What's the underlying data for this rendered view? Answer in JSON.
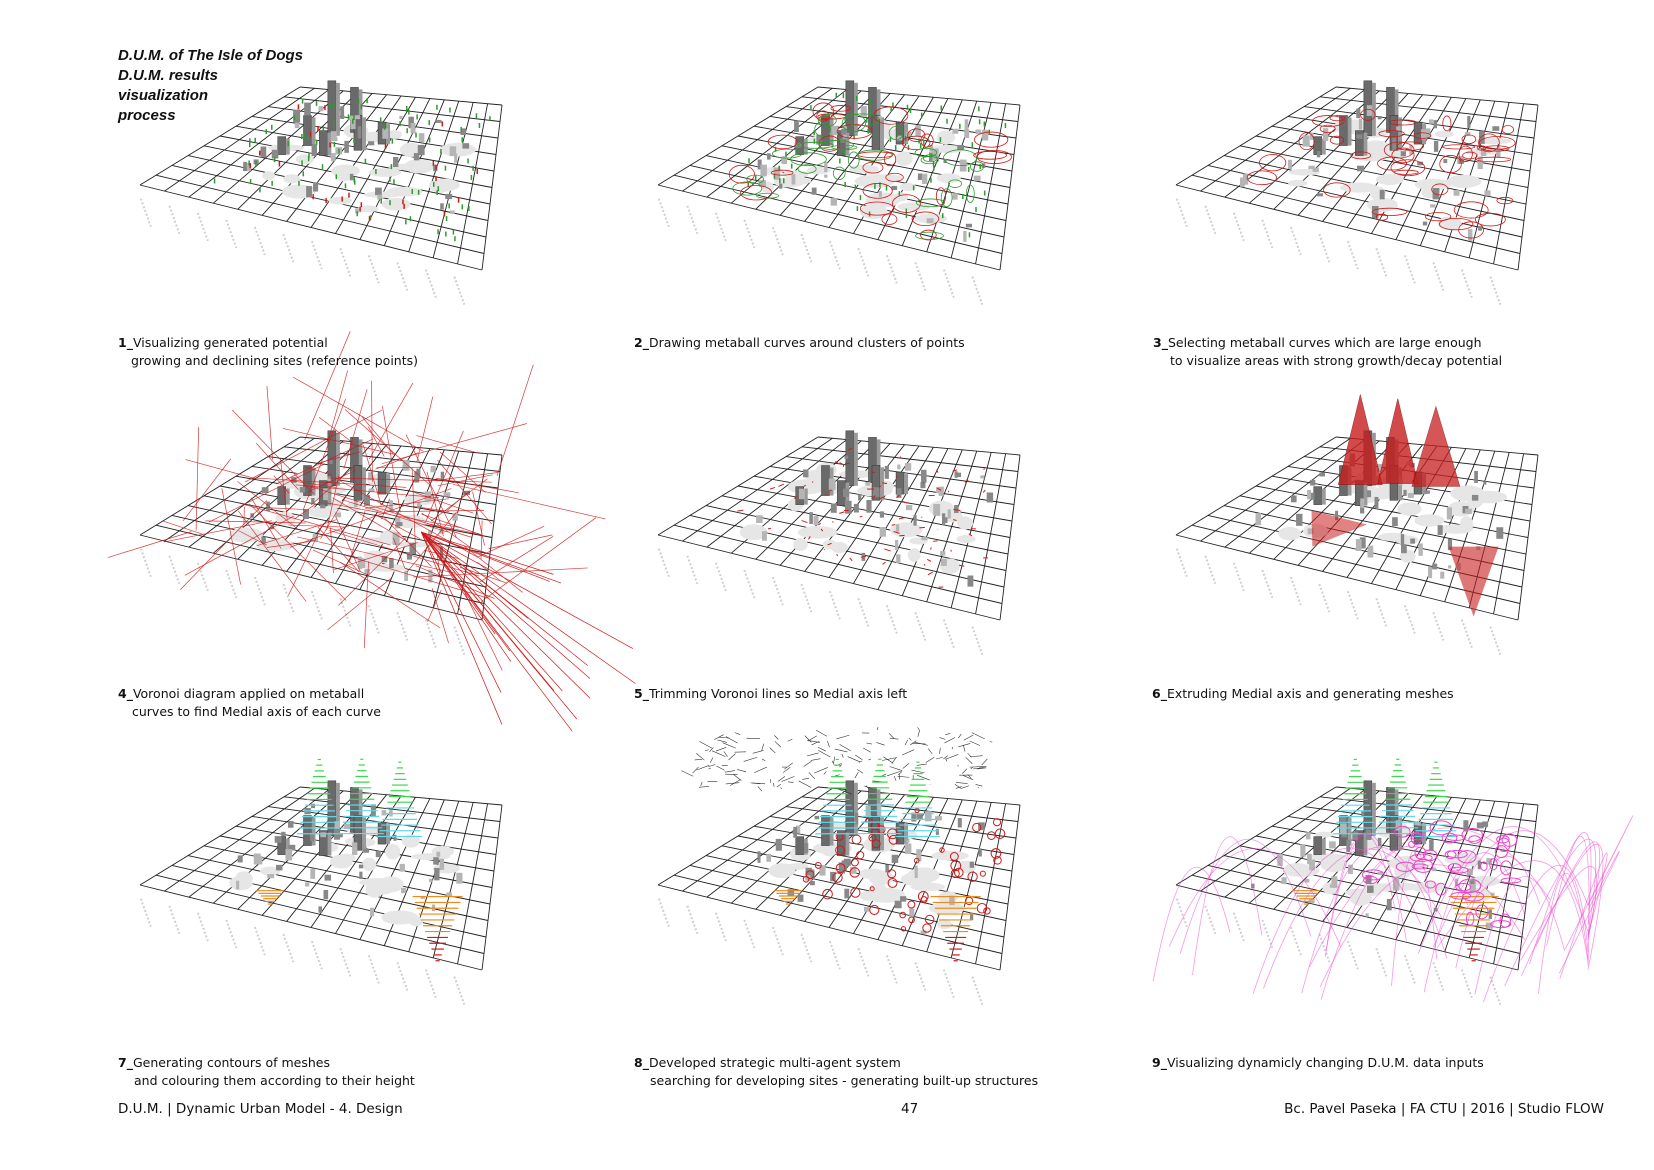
{
  "title": {
    "line1": "D.U.M. of The Isle of Dogs",
    "line2": "D.U.M. results",
    "line3": "visualization",
    "line4": "process"
  },
  "steps": [
    {
      "number": "1_",
      "line1": "Visualizing generated potential",
      "line2": "growing and declining sites (reference points)"
    },
    {
      "number": "2_",
      "line1": "Drawing metaball curves around clusters of points",
      "line2": ""
    },
    {
      "number": "3_",
      "line1": "Selecting metaball curves which are large enough",
      "line2": "to visualize areas with strong growth/decay potential"
    },
    {
      "number": "4_",
      "line1": "Voronoi diagram applied on metaball",
      "line2": "curves to find Medial axis of each curve"
    },
    {
      "number": "5_",
      "line1": "Trimming Voronoi lines so Medial axis left",
      "line2": ""
    },
    {
      "number": "6_",
      "line1": "Extruding Medial axis and generating meshes",
      "line2": ""
    },
    {
      "number": "7_",
      "line1": "Generating contours of meshes",
      "line2": "and colouring them according to their height"
    },
    {
      "number": "8_",
      "line1": "Developed strategic multi-agent system",
      "line2": "searching for developing sites - generating built-up structures"
    },
    {
      "number": "9_",
      "line1": "Visualizing dynamicly changing  D.U.M. data inputs",
      "line2": ""
    }
  ],
  "footer": {
    "left": "D.U.M. | Dynamic Urban Model - 4. Design",
    "page": "47",
    "right": "Bc. Pavel Paseka | FA CTU | 2016 | Studio FLOW"
  },
  "colors": {
    "grid": "#222222",
    "building": "#555555",
    "green_points": "#2e9b2e",
    "red": "#d01818",
    "mesh_red": "#c81e1e",
    "contour_green": "#39d84a",
    "contour_cyan": "#5fd8e8",
    "contour_orange": "#f08a1a",
    "magenta": "#ee44cc"
  }
}
